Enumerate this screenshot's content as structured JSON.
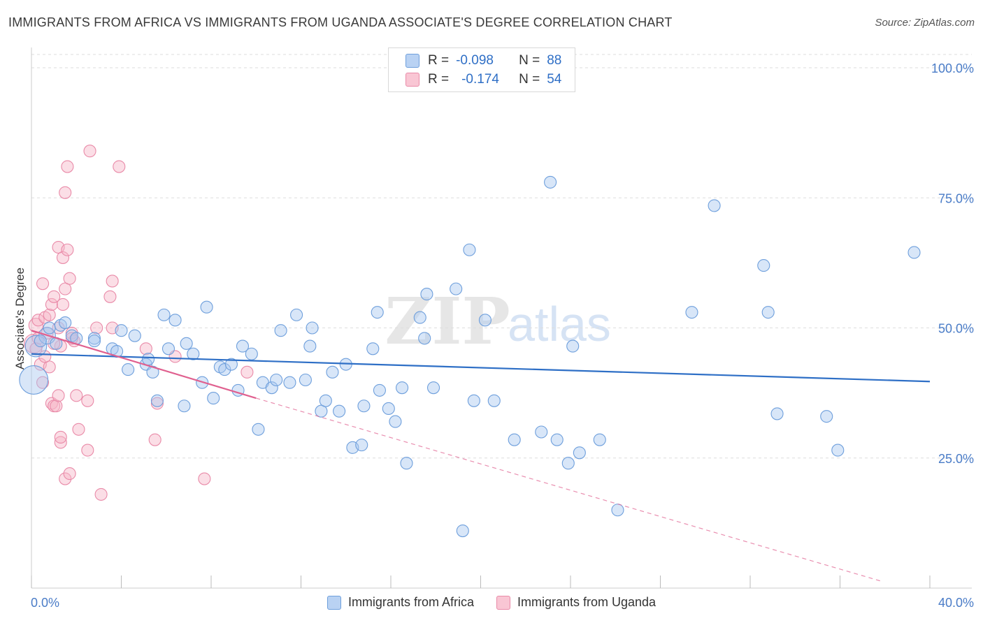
{
  "header": {
    "title": "IMMIGRANTS FROM AFRICA VS IMMIGRANTS FROM UGANDA ASSOCIATE'S DEGREE CORRELATION CHART",
    "source": "Source: ZipAtlas.com"
  },
  "legend": {
    "rows": [
      {
        "r_label": "R =",
        "r_value": "-0.098",
        "n_label": "N =",
        "n_value": "88"
      },
      {
        "r_label": "R =",
        "r_value": "-0.174",
        "n_label": "N =",
        "n_value": "54"
      }
    ]
  },
  "watermark": {
    "zip": "ZIP",
    "atlas": "atlas"
  },
  "colors": {
    "africa_fill": "#a9c8f0",
    "africa_stroke": "#6e9fdc",
    "africa_line": "#2e6fc6",
    "uganda_fill": "#f6b6c8",
    "uganda_stroke": "#e98aa8",
    "uganda_line": "#e0608f",
    "grid": "#dddddd",
    "tick": "#4a7cc7"
  },
  "chart_data": {
    "type": "scatter",
    "xlabel": "",
    "ylabel": "Associate's Degree",
    "xlim": [
      0,
      40
    ],
    "ylim": [
      0,
      100
    ],
    "x_tick_labels": [
      "0.0%",
      "40.0%"
    ],
    "y_ticks": [
      25,
      50,
      75,
      100
    ],
    "y_tick_labels": [
      "25.0%",
      "50.0%",
      "75.0%",
      "100.0%"
    ],
    "grid": true,
    "legend_position": "top-center",
    "series": [
      {
        "name": "Immigrants from Africa",
        "trend": {
          "x": [
            0,
            40
          ],
          "y": [
            45.0,
            39.7
          ]
        },
        "points": [
          {
            "x": 0.1,
            "y": 40.0,
            "s": 2.4
          },
          {
            "x": 0.2,
            "y": 46.5,
            "s": 1.8
          },
          {
            "x": 0.7,
            "y": 48.5,
            "s": 1.4
          },
          {
            "x": 0.8,
            "y": 50.0,
            "s": 1.0
          },
          {
            "x": 1.3,
            "y": 50.5,
            "s": 1.0
          },
          {
            "x": 1.5,
            "y": 51.0,
            "s": 1.0
          },
          {
            "x": 1.8,
            "y": 48.5,
            "s": 1.0
          },
          {
            "x": 2.0,
            "y": 48.0,
            "s": 1.0
          },
          {
            "x": 2.8,
            "y": 48.0,
            "s": 1.0
          },
          {
            "x": 2.8,
            "y": 47.5,
            "s": 1.0
          },
          {
            "x": 3.6,
            "y": 46.0,
            "s": 1.0
          },
          {
            "x": 3.8,
            "y": 45.5,
            "s": 1.0
          },
          {
            "x": 4.0,
            "y": 49.5,
            "s": 1.0
          },
          {
            "x": 4.3,
            "y": 42.0,
            "s": 1.0
          },
          {
            "x": 4.6,
            "y": 48.5,
            "s": 1.0
          },
          {
            "x": 5.1,
            "y": 43.0,
            "s": 1.0
          },
          {
            "x": 5.2,
            "y": 44.0,
            "s": 1.0
          },
          {
            "x": 5.4,
            "y": 41.5,
            "s": 1.0
          },
          {
            "x": 5.6,
            "y": 36.0,
            "s": 1.0
          },
          {
            "x": 5.9,
            "y": 52.5,
            "s": 1.0
          },
          {
            "x": 6.1,
            "y": 46.0,
            "s": 1.0
          },
          {
            "x": 6.4,
            "y": 51.5,
            "s": 1.0
          },
          {
            "x": 6.8,
            "y": 35.0,
            "s": 1.0
          },
          {
            "x": 6.9,
            "y": 47.0,
            "s": 1.0
          },
          {
            "x": 7.2,
            "y": 45.0,
            "s": 1.0
          },
          {
            "x": 7.6,
            "y": 39.5,
            "s": 1.0
          },
          {
            "x": 7.8,
            "y": 54.0,
            "s": 1.0
          },
          {
            "x": 8.1,
            "y": 36.5,
            "s": 1.0
          },
          {
            "x": 8.4,
            "y": 42.5,
            "s": 1.0
          },
          {
            "x": 8.6,
            "y": 42.0,
            "s": 1.0
          },
          {
            "x": 8.9,
            "y": 43.0,
            "s": 1.0
          },
          {
            "x": 9.2,
            "y": 38.0,
            "s": 1.0
          },
          {
            "x": 9.4,
            "y": 46.5,
            "s": 1.0
          },
          {
            "x": 9.8,
            "y": 45.0,
            "s": 1.0
          },
          {
            "x": 10.1,
            "y": 30.5,
            "s": 1.0
          },
          {
            "x": 10.3,
            "y": 39.5,
            "s": 1.0
          },
          {
            "x": 10.7,
            "y": 38.5,
            "s": 1.0
          },
          {
            "x": 10.9,
            "y": 40.0,
            "s": 1.0
          },
          {
            "x": 11.1,
            "y": 49.5,
            "s": 1.0
          },
          {
            "x": 11.5,
            "y": 39.5,
            "s": 1.0
          },
          {
            "x": 11.8,
            "y": 52.5,
            "s": 1.0
          },
          {
            "x": 12.2,
            "y": 40.0,
            "s": 1.0
          },
          {
            "x": 12.4,
            "y": 46.5,
            "s": 1.0
          },
          {
            "x": 12.5,
            "y": 50.0,
            "s": 1.0
          },
          {
            "x": 12.9,
            "y": 34.0,
            "s": 1.0
          },
          {
            "x": 13.1,
            "y": 36.0,
            "s": 1.0
          },
          {
            "x": 13.4,
            "y": 41.5,
            "s": 1.0
          },
          {
            "x": 13.7,
            "y": 34.0,
            "s": 1.0
          },
          {
            "x": 14.0,
            "y": 43.0,
            "s": 1.0
          },
          {
            "x": 14.3,
            "y": 27.0,
            "s": 1.0
          },
          {
            "x": 14.7,
            "y": 27.5,
            "s": 1.0
          },
          {
            "x": 14.8,
            "y": 35.0,
            "s": 1.0
          },
          {
            "x": 15.2,
            "y": 46.0,
            "s": 1.0
          },
          {
            "x": 15.4,
            "y": 53.0,
            "s": 1.0
          },
          {
            "x": 15.5,
            "y": 38.0,
            "s": 1.0
          },
          {
            "x": 15.9,
            "y": 34.5,
            "s": 1.0
          },
          {
            "x": 16.2,
            "y": 32.0,
            "s": 1.0
          },
          {
            "x": 16.5,
            "y": 38.5,
            "s": 1.0
          },
          {
            "x": 16.7,
            "y": 24.0,
            "s": 1.0
          },
          {
            "x": 17.3,
            "y": 52.0,
            "s": 1.0
          },
          {
            "x": 17.5,
            "y": 48.0,
            "s": 1.0
          },
          {
            "x": 17.6,
            "y": 56.5,
            "s": 1.0
          },
          {
            "x": 17.9,
            "y": 38.5,
            "s": 1.0
          },
          {
            "x": 18.9,
            "y": 57.5,
            "s": 1.0
          },
          {
            "x": 19.2,
            "y": 11.0,
            "s": 1.0
          },
          {
            "x": 19.5,
            "y": 65.0,
            "s": 1.0
          },
          {
            "x": 19.7,
            "y": 36.0,
            "s": 1.0
          },
          {
            "x": 20.2,
            "y": 51.5,
            "s": 1.0
          },
          {
            "x": 20.6,
            "y": 36.0,
            "s": 1.0
          },
          {
            "x": 21.5,
            "y": 28.5,
            "s": 1.0
          },
          {
            "x": 22.7,
            "y": 30.0,
            "s": 1.0
          },
          {
            "x": 23.1,
            "y": 78.0,
            "s": 1.0
          },
          {
            "x": 23.4,
            "y": 28.5,
            "s": 1.0
          },
          {
            "x": 23.9,
            "y": 24.0,
            "s": 1.0
          },
          {
            "x": 24.1,
            "y": 46.5,
            "s": 1.0
          },
          {
            "x": 24.4,
            "y": 26.0,
            "s": 1.0
          },
          {
            "x": 25.3,
            "y": 28.5,
            "s": 1.0
          },
          {
            "x": 26.1,
            "y": 15.0,
            "s": 1.0
          },
          {
            "x": 29.4,
            "y": 53.0,
            "s": 1.0
          },
          {
            "x": 30.4,
            "y": 73.5,
            "s": 1.0
          },
          {
            "x": 32.6,
            "y": 62.0,
            "s": 1.0
          },
          {
            "x": 32.8,
            "y": 53.0,
            "s": 1.0
          },
          {
            "x": 33.2,
            "y": 33.5,
            "s": 1.0
          },
          {
            "x": 35.4,
            "y": 33.0,
            "s": 1.0
          },
          {
            "x": 35.9,
            "y": 26.5,
            "s": 1.0
          },
          {
            "x": 39.3,
            "y": 64.5,
            "s": 1.0
          },
          {
            "x": 0.4,
            "y": 47.5,
            "s": 1.0
          },
          {
            "x": 1.1,
            "y": 47.0,
            "s": 1.0
          }
        ]
      },
      {
        "name": "Immigrants from Uganda",
        "trend": {
          "x": [
            0,
            10
          ],
          "y": [
            49.5,
            36.5
          ]
        },
        "trend_extension": {
          "x": [
            10,
            40
          ],
          "y": [
            36.5,
            0
          ]
        },
        "points": [
          {
            "x": 0.1,
            "y": 47.0,
            "s": 1.6
          },
          {
            "x": 0.2,
            "y": 50.5,
            "s": 1.2
          },
          {
            "x": 0.3,
            "y": 48.0,
            "s": 1.0
          },
          {
            "x": 0.3,
            "y": 51.5,
            "s": 1.0
          },
          {
            "x": 0.4,
            "y": 43.0,
            "s": 1.0
          },
          {
            "x": 0.5,
            "y": 39.5,
            "s": 1.0
          },
          {
            "x": 0.5,
            "y": 58.5,
            "s": 1.0
          },
          {
            "x": 0.6,
            "y": 52.0,
            "s": 1.0
          },
          {
            "x": 0.7,
            "y": 49.0,
            "s": 1.0
          },
          {
            "x": 0.8,
            "y": 52.5,
            "s": 1.0
          },
          {
            "x": 0.8,
            "y": 42.5,
            "s": 1.0
          },
          {
            "x": 0.9,
            "y": 35.5,
            "s": 1.0
          },
          {
            "x": 0.9,
            "y": 54.5,
            "s": 1.0
          },
          {
            "x": 1.0,
            "y": 56.0,
            "s": 1.0
          },
          {
            "x": 1.0,
            "y": 35.0,
            "s": 1.0
          },
          {
            "x": 1.1,
            "y": 35.0,
            "s": 1.0
          },
          {
            "x": 1.2,
            "y": 65.5,
            "s": 1.0
          },
          {
            "x": 1.2,
            "y": 50.0,
            "s": 1.0
          },
          {
            "x": 1.2,
            "y": 37.0,
            "s": 1.0
          },
          {
            "x": 1.3,
            "y": 46.5,
            "s": 1.0
          },
          {
            "x": 1.3,
            "y": 28.0,
            "s": 1.0
          },
          {
            "x": 1.3,
            "y": 29.0,
            "s": 1.0
          },
          {
            "x": 1.4,
            "y": 54.5,
            "s": 1.0
          },
          {
            "x": 1.4,
            "y": 63.5,
            "s": 1.0
          },
          {
            "x": 1.5,
            "y": 76.0,
            "s": 1.0
          },
          {
            "x": 1.5,
            "y": 57.5,
            "s": 1.0
          },
          {
            "x": 1.5,
            "y": 21.0,
            "s": 1.0
          },
          {
            "x": 1.6,
            "y": 81.0,
            "s": 1.0
          },
          {
            "x": 1.6,
            "y": 65.0,
            "s": 1.0
          },
          {
            "x": 1.7,
            "y": 59.5,
            "s": 1.0
          },
          {
            "x": 1.7,
            "y": 22.0,
            "s": 1.0
          },
          {
            "x": 1.8,
            "y": 49.0,
            "s": 1.0
          },
          {
            "x": 1.9,
            "y": 47.5,
            "s": 1.0
          },
          {
            "x": 2.0,
            "y": 37.0,
            "s": 1.0
          },
          {
            "x": 2.1,
            "y": 30.5,
            "s": 1.0
          },
          {
            "x": 2.5,
            "y": 26.5,
            "s": 1.0
          },
          {
            "x": 2.5,
            "y": 36.0,
            "s": 1.0
          },
          {
            "x": 2.6,
            "y": 84.0,
            "s": 1.0
          },
          {
            "x": 2.9,
            "y": 50.0,
            "s": 1.0
          },
          {
            "x": 3.1,
            "y": 18.0,
            "s": 1.0
          },
          {
            "x": 3.5,
            "y": 56.0,
            "s": 1.0
          },
          {
            "x": 3.6,
            "y": 59.0,
            "s": 1.0
          },
          {
            "x": 3.6,
            "y": 50.0,
            "s": 1.0
          },
          {
            "x": 3.9,
            "y": 81.0,
            "s": 1.0
          },
          {
            "x": 5.1,
            "y": 46.0,
            "s": 1.0
          },
          {
            "x": 5.5,
            "y": 28.5,
            "s": 1.0
          },
          {
            "x": 5.6,
            "y": 35.5,
            "s": 1.0
          },
          {
            "x": 6.4,
            "y": 44.5,
            "s": 1.0
          },
          {
            "x": 7.7,
            "y": 21.0,
            "s": 1.0
          },
          {
            "x": 9.6,
            "y": 41.5,
            "s": 1.0
          },
          {
            "x": 0.2,
            "y": 46.0,
            "s": 1.0
          },
          {
            "x": 1.0,
            "y": 47.0,
            "s": 1.0
          },
          {
            "x": 0.6,
            "y": 44.5,
            "s": 1.0
          },
          {
            "x": 1.8,
            "y": 48.0,
            "s": 1.0
          }
        ]
      }
    ]
  },
  "bottom_legend": {
    "items": [
      "Immigrants from Africa",
      "Immigrants from Uganda"
    ]
  }
}
